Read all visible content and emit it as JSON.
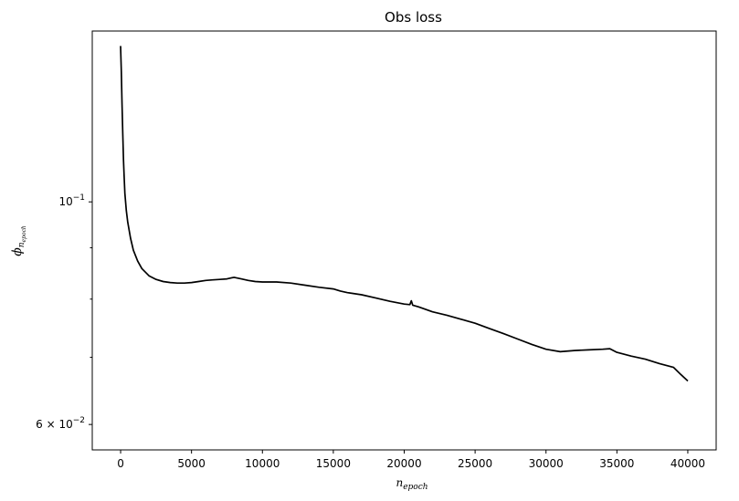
{
  "chart_data": {
    "type": "line",
    "title": "Obs loss",
    "xlabel_main": "n",
    "xlabel_sub": "epoch",
    "ylabel_main": "ϕ",
    "ylabel_sub": "n",
    "ylabel_subsub": "epoch",
    "y_scale": "log",
    "xlim": [
      -2000,
      42000
    ],
    "ylim": [
      0.0566,
      0.148
    ],
    "x_ticks": [
      0,
      5000,
      10000,
      15000,
      20000,
      25000,
      30000,
      35000,
      40000
    ],
    "x_tick_labels": [
      "0",
      "5000",
      "10000",
      "15000",
      "20000",
      "25000",
      "30000",
      "35000",
      "40000"
    ],
    "y_major_ticks": [
      {
        "value": 0.1,
        "base": "10",
        "exp": "−1"
      },
      {
        "value": 0.06,
        "base": "6 × 10",
        "exp": "−2"
      }
    ],
    "y_minor_ticks": [
      0.07,
      0.08,
      0.09
    ],
    "grid": false,
    "legend": "none",
    "series": [
      {
        "color": "#000000",
        "points": [
          [
            0,
            0.143
          ],
          [
            50,
            0.135
          ],
          [
            100,
            0.125
          ],
          [
            150,
            0.117
          ],
          [
            200,
            0.11
          ],
          [
            250,
            0.106
          ],
          [
            300,
            0.102
          ],
          [
            400,
            0.098
          ],
          [
            500,
            0.0955
          ],
          [
            700,
            0.092
          ],
          [
            900,
            0.0895
          ],
          [
            1200,
            0.0873
          ],
          [
            1500,
            0.0858
          ],
          [
            2000,
            0.0844
          ],
          [
            2500,
            0.0837
          ],
          [
            3000,
            0.0833
          ],
          [
            3500,
            0.0831
          ],
          [
            4000,
            0.083
          ],
          [
            4500,
            0.083
          ],
          [
            5000,
            0.0831
          ],
          [
            5500,
            0.0833
          ],
          [
            6000,
            0.0835
          ],
          [
            6500,
            0.0836
          ],
          [
            7000,
            0.0837
          ],
          [
            7500,
            0.0838
          ],
          [
            8000,
            0.0841
          ],
          [
            8500,
            0.0838
          ],
          [
            9000,
            0.0835
          ],
          [
            9500,
            0.0833
          ],
          [
            10000,
            0.0832
          ],
          [
            10500,
            0.0832
          ],
          [
            11000,
            0.0832
          ],
          [
            12000,
            0.083
          ],
          [
            13000,
            0.0826
          ],
          [
            14000,
            0.0822
          ],
          [
            15000,
            0.0819
          ],
          [
            15500,
            0.0815
          ],
          [
            16000,
            0.0812
          ],
          [
            17000,
            0.0808
          ],
          [
            18000,
            0.0802
          ],
          [
            19000,
            0.0796
          ],
          [
            20000,
            0.0791
          ],
          [
            20400,
            0.079
          ],
          [
            20500,
            0.0797
          ],
          [
            20600,
            0.0789
          ],
          [
            21000,
            0.0786
          ],
          [
            22000,
            0.0777
          ],
          [
            23000,
            0.0771
          ],
          [
            24000,
            0.0764
          ],
          [
            25000,
            0.0757
          ],
          [
            26000,
            0.0748
          ],
          [
            27000,
            0.0739
          ],
          [
            28000,
            0.073
          ],
          [
            29000,
            0.0721
          ],
          [
            30000,
            0.0713
          ],
          [
            31000,
            0.0709
          ],
          [
            32000,
            0.0711
          ],
          [
            33000,
            0.0712
          ],
          [
            34000,
            0.0713
          ],
          [
            34500,
            0.0714
          ],
          [
            35000,
            0.0708
          ],
          [
            36000,
            0.0702
          ],
          [
            37000,
            0.0697
          ],
          [
            38000,
            0.069
          ],
          [
            39000,
            0.0684
          ],
          [
            39500,
            0.0673
          ],
          [
            40000,
            0.0663
          ]
        ]
      }
    ]
  }
}
